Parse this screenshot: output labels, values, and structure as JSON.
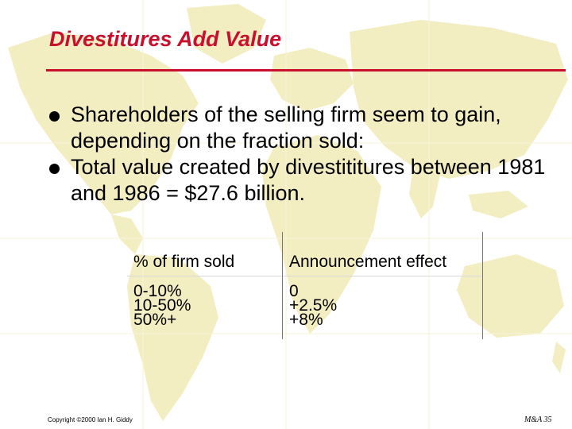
{
  "slide": {
    "title": "Divestitures Add Value",
    "bullets": [
      "Shareholders of the selling firm seem to gain, depending on the fraction sold:",
      "Total value created by divestititures between 1981 and 1986 = $27.6 billion."
    ],
    "table": {
      "headers": [
        "% of firm sold",
        "Announcement effect"
      ],
      "rows": [
        [
          "0-10%",
          "0"
        ],
        [
          "10-50%",
          "+2.5%"
        ],
        [
          "50%+",
          "+8%"
        ]
      ]
    },
    "footer": {
      "copyright": "Copyright ©2000 Ian H. Giddy",
      "page": "M&A 35"
    }
  },
  "colors": {
    "title": "#c8102e",
    "map": "#f3eec2",
    "text": "#000000"
  }
}
